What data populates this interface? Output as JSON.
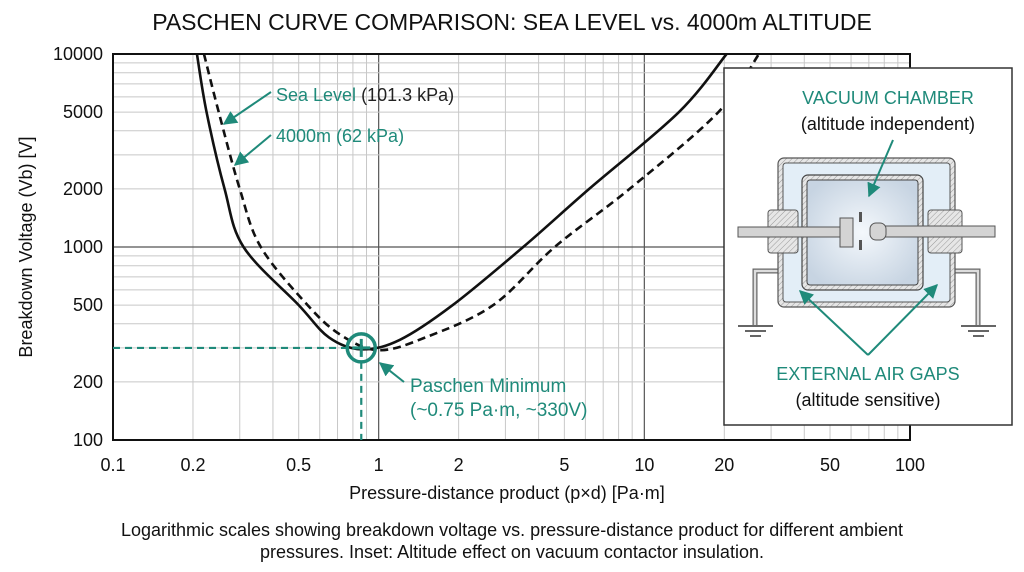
{
  "chart_data": {
    "type": "line",
    "title": "PASCHEN CURVE COMPARISON: SEA LEVEL vs. 4000m ALTITUDE",
    "xlabel": "Pressure-distance product (p×d) [Pa·m]",
    "ylabel": "Breakdown Voltage (Vb) [V]",
    "xscale": "log",
    "yscale": "log",
    "xlim": [
      0.1,
      100
    ],
    "ylim": [
      100,
      10000
    ],
    "grid": true,
    "x_ticks": [
      "0.1",
      "0.2",
      "0.5",
      "1",
      "2",
      "5",
      "10",
      "20",
      "50",
      "100"
    ],
    "y_ticks": [
      "10000",
      "5000",
      "2000",
      "1000",
      "500",
      "200",
      "100"
    ],
    "series": [
      {
        "name": "Sea Level (101.3 kPa)",
        "style": "solid",
        "color": "#111111",
        "points": [
          [
            0.207,
            10000
          ],
          [
            0.225,
            5000
          ],
          [
            0.263,
            2000
          ],
          [
            0.31,
            1000
          ],
          [
            0.5,
            500
          ],
          [
            0.65,
            340
          ],
          [
            0.86,
            295
          ],
          [
            1.2,
            330
          ],
          [
            1.9,
            500
          ],
          [
            3.5,
            1000
          ],
          [
            6.2,
            2000
          ],
          [
            13.5,
            5000
          ],
          [
            20.4,
            10000
          ]
        ]
      },
      {
        "name": "4000m (62 kPa)",
        "style": "dashed",
        "color": "#111111",
        "points": [
          [
            0.22,
            10000
          ],
          [
            0.25,
            5000
          ],
          [
            0.3,
            2000
          ],
          [
            0.36,
            1000
          ],
          [
            0.54,
            500
          ],
          [
            0.72,
            350
          ],
          [
            1.0,
            292
          ],
          [
            1.5,
            340
          ],
          [
            2.7,
            500
          ],
          [
            4.6,
            1000
          ],
          [
            8.8,
            2000
          ],
          [
            19,
            5000
          ],
          [
            27,
            10000
          ]
        ]
      }
    ],
    "annotations": {
      "sea_level_name": "Sea Level",
      "sea_level_pressure": "(101.3 kPa)",
      "altitude_label": "4000m (62 kPa)",
      "minimum_title": "Paschen Minimum",
      "minimum_detail": "(~0.75 Pa·m, ~330V)",
      "minimum_point": [
        0.86,
        300
      ]
    },
    "inset": {
      "vacuum_title": "VACUUM CHAMBER",
      "vacuum_note": "(altitude independent)",
      "air_title": "EXTERNAL AIR GAPS",
      "air_note": "(altitude sensitive)"
    },
    "caption_line1": "Logarithmic scales showing breakdown voltage vs. pressure-distance product for different ambient",
    "caption_line2": "pressures. Inset: Altitude effect on vacuum contactor insulation.",
    "colors": {
      "accent": "#1f8a7a",
      "curve": "#111111",
      "grid": "#c8c8c8"
    }
  }
}
